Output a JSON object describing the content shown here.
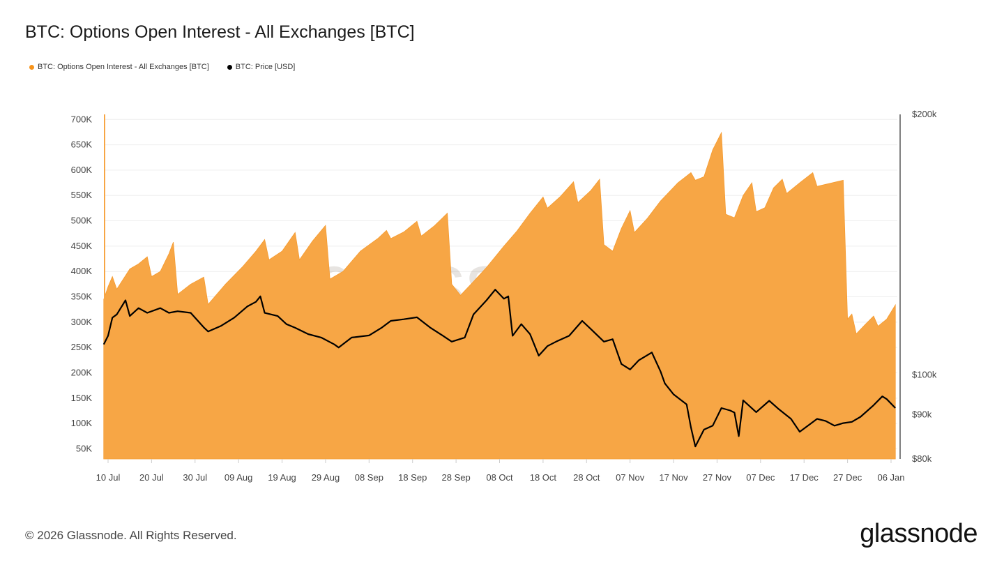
{
  "title": "BTC: Options Open Interest - All Exchanges [BTC]",
  "legend": [
    {
      "label": "BTC: Options Open Interest - All Exchanges [BTC]",
      "color": "#F7931A"
    },
    {
      "label": "BTC: Price [USD]",
      "color": "#000000"
    }
  ],
  "footer": "© 2026 Glassnode. All Rights Reserved.",
  "logo": "glassnode",
  "watermark": "glassnode",
  "chart_data": {
    "type": "area+line",
    "title": "BTC: Options Open Interest - All Exchanges [BTC]",
    "grid": true,
    "legend_placement": "top-left",
    "xlim": [
      "2025-07-09",
      "2026-01-07"
    ],
    "x_ticks": [
      "10 Jul",
      "20 Jul",
      "30 Jul",
      "09 Aug",
      "19 Aug",
      "29 Aug",
      "08 Sep",
      "18 Sep",
      "28 Sep",
      "08 Oct",
      "18 Oct",
      "28 Oct",
      "07 Nov",
      "17 Nov",
      "27 Nov",
      "07 Dec",
      "17 Dec",
      "27 Dec",
      "06 Jan"
    ],
    "x_tick_dates": [
      "2025-07-10",
      "2025-07-20",
      "2025-07-30",
      "2025-08-09",
      "2025-08-19",
      "2025-08-29",
      "2025-09-08",
      "2025-09-18",
      "2025-09-28",
      "2025-10-08",
      "2025-10-18",
      "2025-10-28",
      "2025-11-07",
      "2025-11-17",
      "2025-11-27",
      "2025-12-07",
      "2025-12-17",
      "2025-12-27",
      "2026-01-06"
    ],
    "y_left": {
      "scale": "linear",
      "ylim": [
        30000,
        710000
      ],
      "ticks": [
        50000,
        100000,
        150000,
        200000,
        250000,
        300000,
        350000,
        400000,
        450000,
        500000,
        550000,
        600000,
        650000,
        700000
      ],
      "tick_labels": [
        "50K",
        "100K",
        "150K",
        "200K",
        "250K",
        "300K",
        "350K",
        "400K",
        "450K",
        "500K",
        "550K",
        "600K",
        "650K",
        "700K"
      ]
    },
    "y_right": {
      "scale": "log",
      "ylim": [
        80000,
        200000
      ],
      "ticks": [
        80000,
        90000,
        100000,
        200000
      ],
      "tick_labels": [
        "$80k",
        "$90k",
        "$100k",
        "$200k"
      ]
    },
    "series": [
      {
        "name": "BTC: Options Open Interest - All Exchanges [BTC]",
        "type": "area",
        "axis": "left",
        "color": "#F7A645",
        "points": [
          [
            "2025-07-09",
            345000
          ],
          [
            "2025-07-10",
            370000
          ],
          [
            "2025-07-11",
            390000
          ],
          [
            "2025-07-12",
            365000
          ],
          [
            "2025-07-15",
            405000
          ],
          [
            "2025-07-17",
            415000
          ],
          [
            "2025-07-19",
            429000
          ],
          [
            "2025-07-20",
            390000
          ],
          [
            "2025-07-22",
            400000
          ],
          [
            "2025-07-24",
            435000
          ],
          [
            "2025-07-25",
            458000
          ],
          [
            "2025-07-26",
            355000
          ],
          [
            "2025-07-29",
            375000
          ],
          [
            "2025-08-01",
            389000
          ],
          [
            "2025-08-02",
            335000
          ],
          [
            "2025-08-06",
            375000
          ],
          [
            "2025-08-10",
            410000
          ],
          [
            "2025-08-13",
            440000
          ],
          [
            "2025-08-15",
            463000
          ],
          [
            "2025-08-16",
            423000
          ],
          [
            "2025-08-19",
            440000
          ],
          [
            "2025-08-22",
            477000
          ],
          [
            "2025-08-23",
            423000
          ],
          [
            "2025-08-26",
            460000
          ],
          [
            "2025-08-29",
            491000
          ],
          [
            "2025-08-30",
            385000
          ],
          [
            "2025-09-02",
            400000
          ],
          [
            "2025-09-06",
            440000
          ],
          [
            "2025-09-10",
            465000
          ],
          [
            "2025-09-12",
            481000
          ],
          [
            "2025-09-13",
            465000
          ],
          [
            "2025-09-16",
            478000
          ],
          [
            "2025-09-19",
            499000
          ],
          [
            "2025-09-20",
            470000
          ],
          [
            "2025-09-23",
            490000
          ],
          [
            "2025-09-26",
            515000
          ],
          [
            "2025-09-27",
            375000
          ],
          [
            "2025-09-29",
            353000
          ],
          [
            "2025-10-02",
            380000
          ],
          [
            "2025-10-05",
            408000
          ],
          [
            "2025-10-09",
            450000
          ],
          [
            "2025-10-12",
            480000
          ],
          [
            "2025-10-15",
            515000
          ],
          [
            "2025-10-18",
            547000
          ],
          [
            "2025-10-19",
            525000
          ],
          [
            "2025-10-22",
            548000
          ],
          [
            "2025-10-25",
            577000
          ],
          [
            "2025-10-26",
            536000
          ],
          [
            "2025-10-29",
            560000
          ],
          [
            "2025-10-31",
            582000
          ],
          [
            "2025-11-01",
            453000
          ],
          [
            "2025-11-03",
            440000
          ],
          [
            "2025-11-05",
            485000
          ],
          [
            "2025-11-07",
            520000
          ],
          [
            "2025-11-08",
            477000
          ],
          [
            "2025-11-11",
            505000
          ],
          [
            "2025-11-14",
            539000
          ],
          [
            "2025-11-18",
            575000
          ],
          [
            "2025-11-21",
            595000
          ],
          [
            "2025-11-22",
            580000
          ],
          [
            "2025-11-24",
            587000
          ],
          [
            "2025-11-26",
            640000
          ],
          [
            "2025-11-28",
            674000
          ],
          [
            "2025-11-29",
            513000
          ],
          [
            "2025-12-01",
            506000
          ],
          [
            "2025-12-03",
            550000
          ],
          [
            "2025-12-05",
            575000
          ],
          [
            "2025-12-06",
            518000
          ],
          [
            "2025-12-08",
            526000
          ],
          [
            "2025-12-10",
            565000
          ],
          [
            "2025-12-12",
            582000
          ],
          [
            "2025-12-13",
            554000
          ],
          [
            "2025-12-16",
            575000
          ],
          [
            "2025-12-19",
            595000
          ],
          [
            "2025-12-20",
            568000
          ],
          [
            "2025-12-23",
            574000
          ],
          [
            "2025-12-26",
            580000
          ],
          [
            "2025-12-27",
            306000
          ],
          [
            "2025-12-28",
            316000
          ],
          [
            "2025-12-29",
            277000
          ],
          [
            "2025-12-31",
            295000
          ],
          [
            "2026-01-02",
            312000
          ],
          [
            "2026-01-03",
            292000
          ],
          [
            "2026-01-05",
            306000
          ],
          [
            "2026-01-07",
            334000
          ]
        ]
      },
      {
        "name": "BTC: Price [USD]",
        "type": "line",
        "axis": "right",
        "color": "#000000",
        "points": [
          [
            "2025-07-09",
            108500
          ],
          [
            "2025-07-10",
            111000
          ],
          [
            "2025-07-11",
            116500
          ],
          [
            "2025-07-12",
            117500
          ],
          [
            "2025-07-14",
            122000
          ],
          [
            "2025-07-15",
            117000
          ],
          [
            "2025-07-17",
            119500
          ],
          [
            "2025-07-19",
            118000
          ],
          [
            "2025-07-22",
            119500
          ],
          [
            "2025-07-24",
            118000
          ],
          [
            "2025-07-26",
            118500
          ],
          [
            "2025-07-29",
            118000
          ],
          [
            "2025-08-01",
            113500
          ],
          [
            "2025-08-02",
            112300
          ],
          [
            "2025-08-05",
            114000
          ],
          [
            "2025-08-08",
            116500
          ],
          [
            "2025-08-11",
            120000
          ],
          [
            "2025-08-13",
            121500
          ],
          [
            "2025-08-14",
            123300
          ],
          [
            "2025-08-15",
            118000
          ],
          [
            "2025-08-18",
            117000
          ],
          [
            "2025-08-20",
            114500
          ],
          [
            "2025-08-22",
            113400
          ],
          [
            "2025-08-25",
            111500
          ],
          [
            "2025-08-28",
            110500
          ],
          [
            "2025-08-31",
            108500
          ],
          [
            "2025-09-01",
            107600
          ],
          [
            "2025-09-04",
            110500
          ],
          [
            "2025-09-08",
            111100
          ],
          [
            "2025-09-11",
            113500
          ],
          [
            "2025-09-13",
            115500
          ],
          [
            "2025-09-16",
            116000
          ],
          [
            "2025-09-19",
            116600
          ],
          [
            "2025-09-22",
            113500
          ],
          [
            "2025-09-25",
            111000
          ],
          [
            "2025-09-27",
            109300
          ],
          [
            "2025-09-30",
            110500
          ],
          [
            "2025-10-02",
            117500
          ],
          [
            "2025-10-05",
            122000
          ],
          [
            "2025-10-07",
            125500
          ],
          [
            "2025-10-09",
            122500
          ],
          [
            "2025-10-10",
            123300
          ],
          [
            "2025-10-11",
            111000
          ],
          [
            "2025-10-13",
            114500
          ],
          [
            "2025-10-15",
            111500
          ],
          [
            "2025-10-17",
            105300
          ],
          [
            "2025-10-19",
            108000
          ],
          [
            "2025-10-21",
            109300
          ],
          [
            "2025-10-24",
            111000
          ],
          [
            "2025-10-27",
            115500
          ],
          [
            "2025-10-29",
            113000
          ],
          [
            "2025-11-01",
            109300
          ],
          [
            "2025-11-03",
            110000
          ],
          [
            "2025-11-05",
            103000
          ],
          [
            "2025-11-07",
            101500
          ],
          [
            "2025-11-09",
            104000
          ],
          [
            "2025-11-12",
            106200
          ],
          [
            "2025-11-14",
            101000
          ],
          [
            "2025-11-15",
            97800
          ],
          [
            "2025-11-17",
            95000
          ],
          [
            "2025-11-20",
            92500
          ],
          [
            "2025-11-21",
            87000
          ],
          [
            "2025-11-22",
            82700
          ],
          [
            "2025-11-24",
            86500
          ],
          [
            "2025-11-26",
            87400
          ],
          [
            "2025-11-28",
            91600
          ],
          [
            "2025-11-30",
            91000
          ],
          [
            "2025-12-01",
            90500
          ],
          [
            "2025-12-02",
            85000
          ],
          [
            "2025-12-03",
            93500
          ],
          [
            "2025-12-06",
            90600
          ],
          [
            "2025-12-09",
            93400
          ],
          [
            "2025-12-11",
            91500
          ],
          [
            "2025-12-14",
            89000
          ],
          [
            "2025-12-16",
            86000
          ],
          [
            "2025-12-18",
            87500
          ],
          [
            "2025-12-20",
            89000
          ],
          [
            "2025-12-22",
            88500
          ],
          [
            "2025-12-24",
            87400
          ],
          [
            "2025-12-26",
            88000
          ],
          [
            "2025-12-28",
            88300
          ],
          [
            "2025-12-30",
            89500
          ],
          [
            "2026-01-02",
            92300
          ],
          [
            "2026-01-04",
            94500
          ],
          [
            "2026-01-05",
            93800
          ],
          [
            "2026-01-07",
            91600
          ]
        ]
      }
    ]
  }
}
